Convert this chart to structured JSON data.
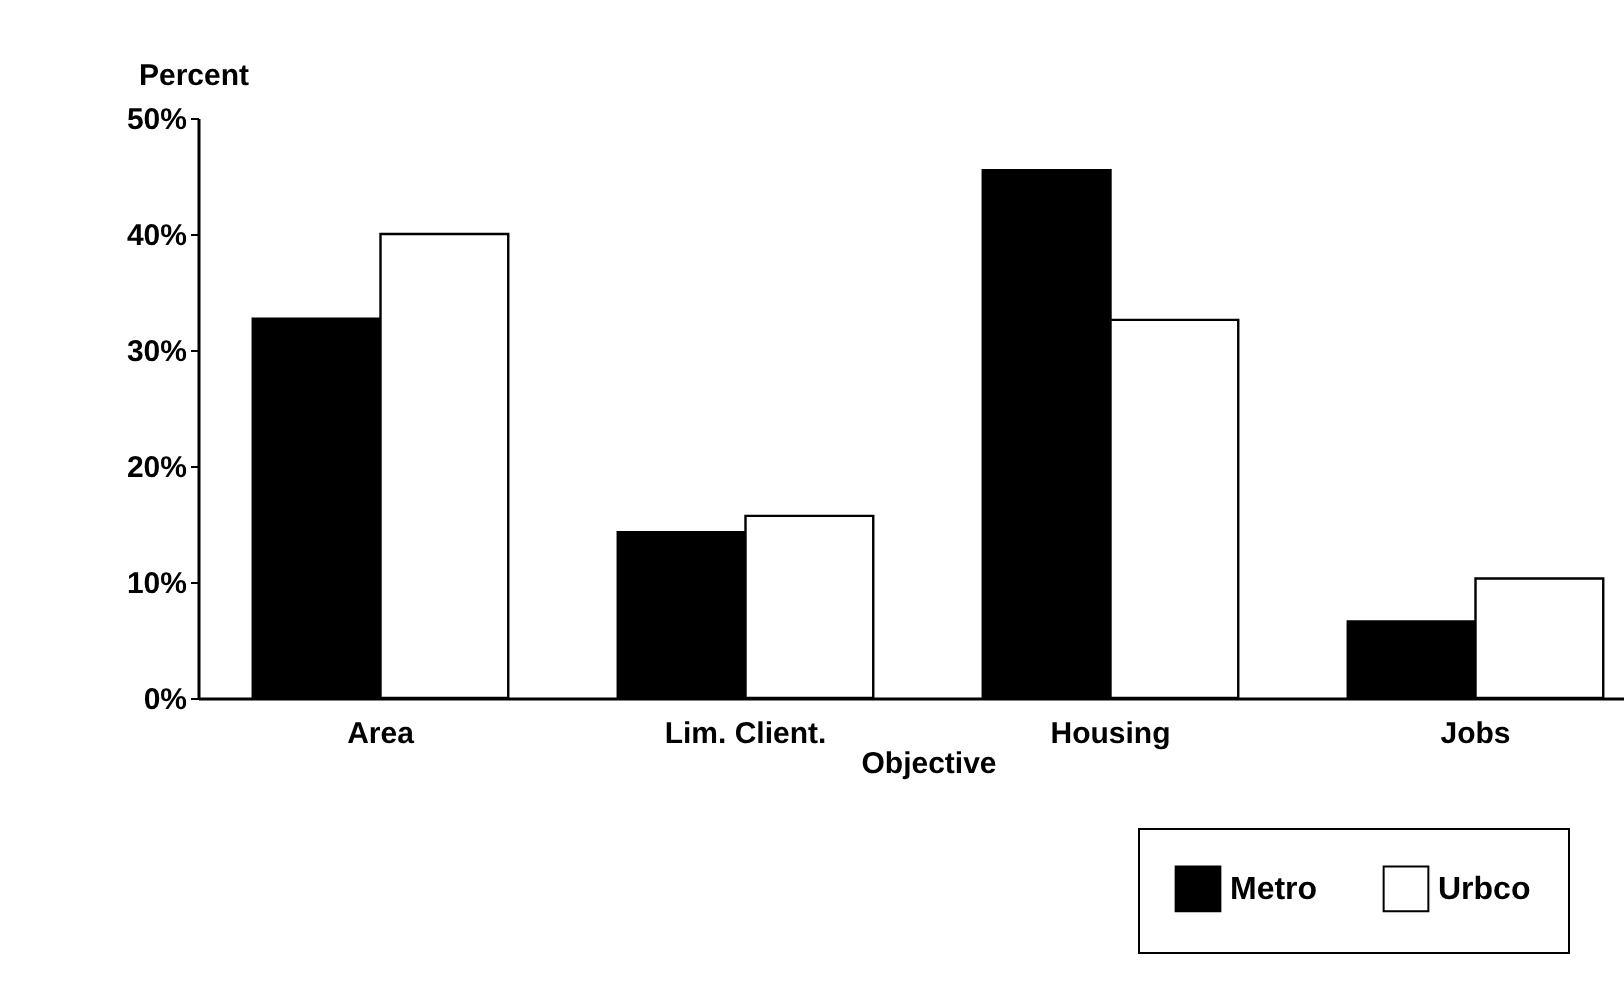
{
  "chart_data": {
    "type": "bar",
    "ylabel": "Percent",
    "xlabel": "Objective",
    "categories": [
      "Area",
      "Lim. Client.",
      "Housing",
      "Jobs"
    ],
    "series": [
      {
        "name": "Metro",
        "color": "#000000",
        "values": [
          32.7,
          14.3,
          45.5,
          6.6
        ]
      },
      {
        "name": "Urbco",
        "color": "#ffffff",
        "values": [
          40.0,
          15.7,
          32.6,
          10.3
        ]
      }
    ],
    "ylim": [
      0,
      50
    ],
    "yticks": [
      {
        "value": 0,
        "label": "0%"
      },
      {
        "value": 10,
        "label": "10%"
      },
      {
        "value": 20,
        "label": "20%"
      },
      {
        "value": 30,
        "label": "30%"
      },
      {
        "value": 40,
        "label": "40%"
      },
      {
        "value": 50,
        "label": "50%"
      }
    ],
    "grid": false,
    "legend": "bottom right"
  }
}
